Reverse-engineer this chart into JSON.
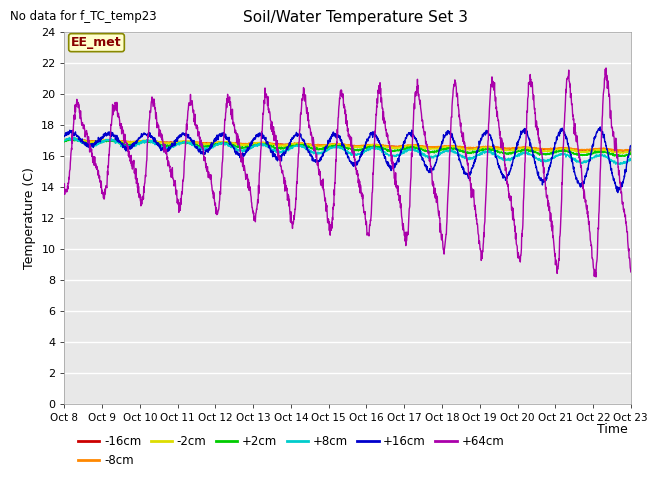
{
  "title": "Soil/Water Temperature Set 3",
  "no_data_label": "No data for f_TC_temp23",
  "xlabel": "Time",
  "ylabel": "Temperature (C)",
  "xlim": [
    0,
    15
  ],
  "ylim": [
    0,
    24
  ],
  "yticks": [
    0,
    2,
    4,
    6,
    8,
    10,
    12,
    14,
    16,
    18,
    20,
    22,
    24
  ],
  "xtick_labels": [
    "Oct 8",
    "Oct 9",
    "Oct 10",
    "Oct 11",
    "Oct 12",
    "Oct 13",
    "Oct 14",
    "Oct 15",
    "Oct 16",
    "Oct 17",
    "Oct 18",
    "Oct 19",
    "Oct 20",
    "Oct 21",
    "Oct 22",
    "Oct 23"
  ],
  "fig_bg_color": "#ffffff",
  "plot_bg_color": "#e8e8e8",
  "grid_color": "#ffffff",
  "series": {
    "m16cm": {
      "label": "-16cm",
      "color": "#cc0000"
    },
    "m8cm": {
      "label": "-8cm",
      "color": "#ff8800"
    },
    "m2cm": {
      "label": "-2cm",
      "color": "#dddd00"
    },
    "p2cm": {
      "label": "+2cm",
      "color": "#00cc00"
    },
    "p8cm": {
      "label": "+8cm",
      "color": "#00cccc"
    },
    "p16cm": {
      "label": "+16cm",
      "color": "#0000cc"
    },
    "p64cm": {
      "label": "+64cm",
      "color": "#aa00aa"
    }
  },
  "EE_met_label": "EE_met",
  "EE_met_box_color": "#ffffcc",
  "EE_met_text_color": "#880000",
  "EE_met_border_color": "#888800"
}
